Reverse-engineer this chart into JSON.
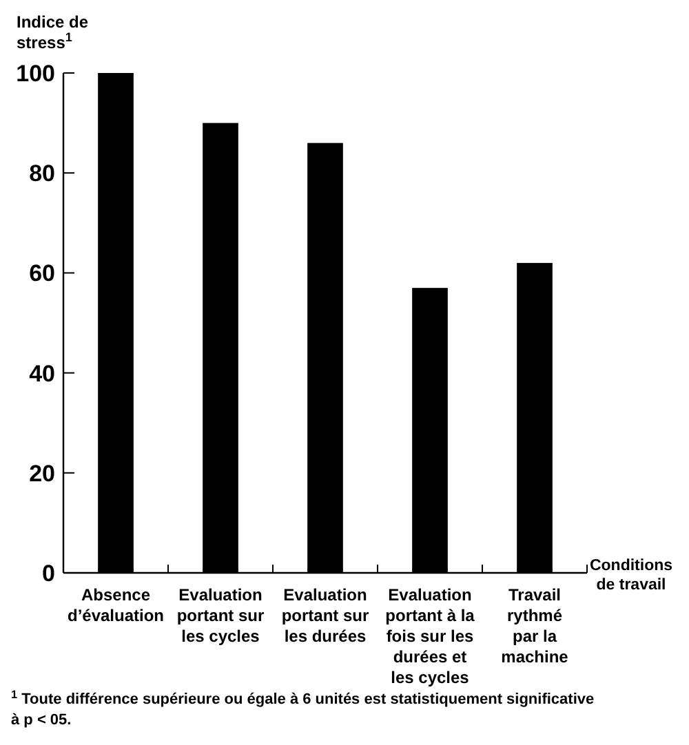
{
  "chart_data": {
    "type": "bar",
    "ylabel": "Indice de\nstress$^{1}$",
    "xlabel": "Conditions\nde travail",
    "categories": [
      "Absence\nd’évaluation",
      "Evaluation\nportant sur\nles cycles",
      "Evaluation\nportant sur\nles durées",
      "Evaluation\nportant à la\nfois sur les\ndurées et\nles cycles",
      "Travail\nrythmé\npar la\nmachine"
    ],
    "values": [
      100,
      90,
      86,
      57,
      62
    ],
    "color": "#000000",
    "ylim": [
      0,
      100
    ],
    "yticks": [
      0,
      20,
      40,
      60,
      80,
      100
    ],
    "grid": false,
    "annotations": [
      "$^{1}$ Toute différence supérieure ou égale à 6 unités est statistiquement significative\nà p < 05."
    ]
  }
}
